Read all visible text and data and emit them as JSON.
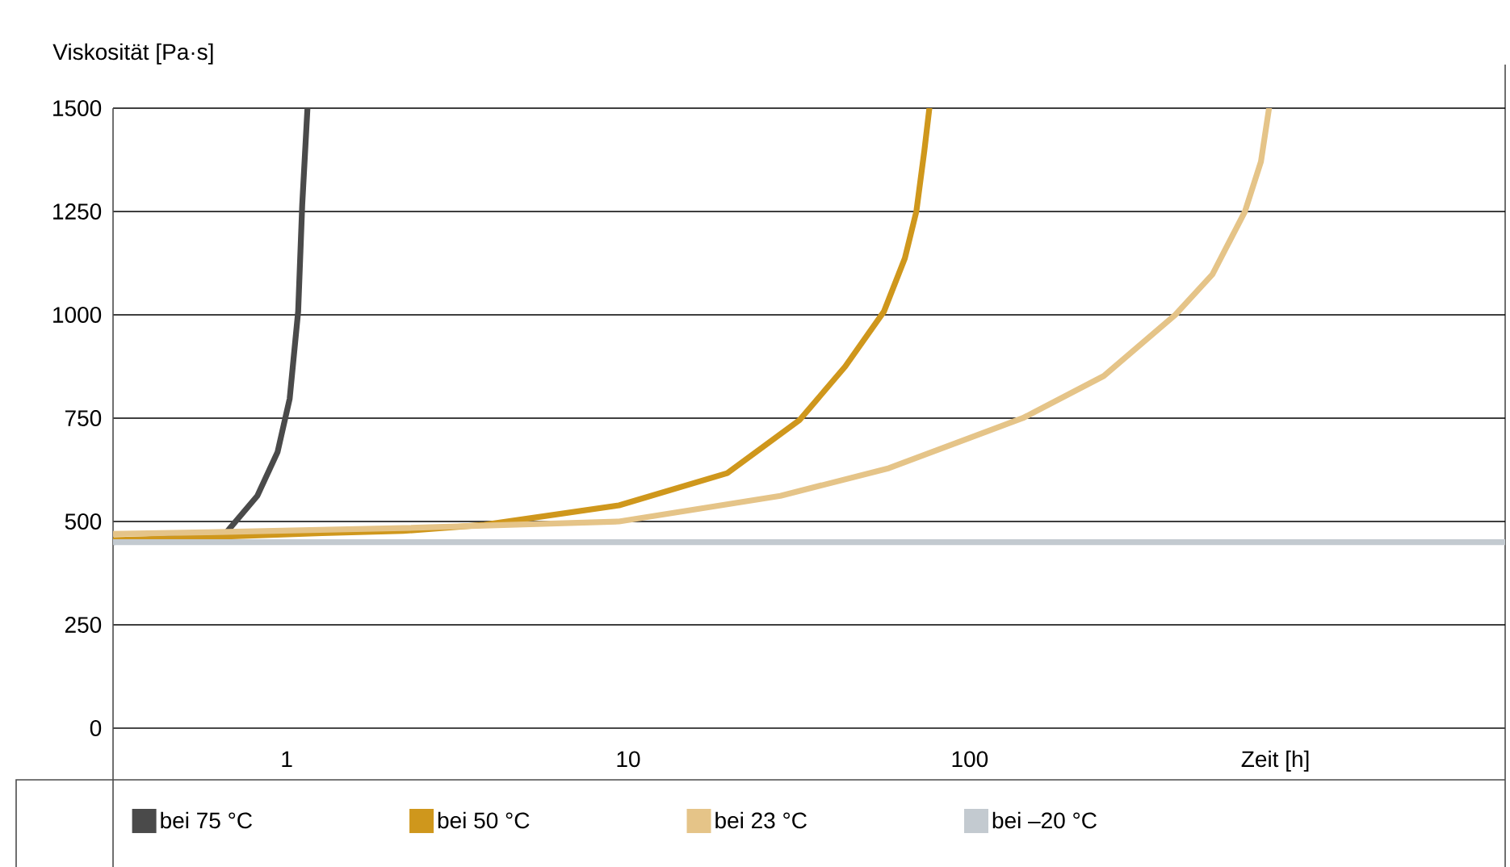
{
  "chart_data": {
    "type": "line",
    "ylabel": "Viskosität [Pa·s]",
    "xlabel": "Zeit [h]",
    "log": "x",
    "grid": "y",
    "legend": "bottom",
    "xlim": [
      0.31,
      3700
    ],
    "xticks": [
      1,
      10,
      100
    ],
    "ylim": [
      0,
      1500
    ],
    "yticks": [
      0,
      250,
      500,
      750,
      1000,
      1250,
      1500
    ],
    "series": [
      {
        "name": "bei 75 °C",
        "color": "#4a4a4a",
        "x": [
          0.31,
          0.66,
          0.82,
          0.94,
          1.02,
          1.08,
          1.11,
          1.15
        ],
        "values": [
          450,
          470,
          562,
          668,
          797,
          1008,
          1266,
          1500
        ]
      },
      {
        "name": "bei 50 °C",
        "color": "#cf971c",
        "x": [
          0.31,
          0.59,
          1.27,
          2.19,
          3.79,
          9.4,
          19.5,
          31.8,
          43.2,
          56.1,
          64.6,
          69.8,
          73.7,
          76.2
        ],
        "values": [
          455,
          462,
          472,
          477,
          492,
          539,
          617,
          746,
          875,
          1008,
          1137,
          1250,
          1398,
          1500
        ]
      },
      {
        "name": "bei 23 °C",
        "color": "#e5c488",
        "x": [
          0.31,
          0.59,
          2.19,
          9.4,
          27.9,
          58,
          143,
          247,
          400,
          514,
          640,
          713,
          753
        ],
        "values": [
          470,
          474,
          484,
          500,
          562,
          629,
          750,
          852,
          1000,
          1098,
          1250,
          1371,
          1500
        ]
      },
      {
        "name": "bei –20 °C",
        "color": "#c3cad0",
        "x": [
          0.31,
          3700
        ],
        "values": [
          450,
          450
        ]
      }
    ]
  }
}
